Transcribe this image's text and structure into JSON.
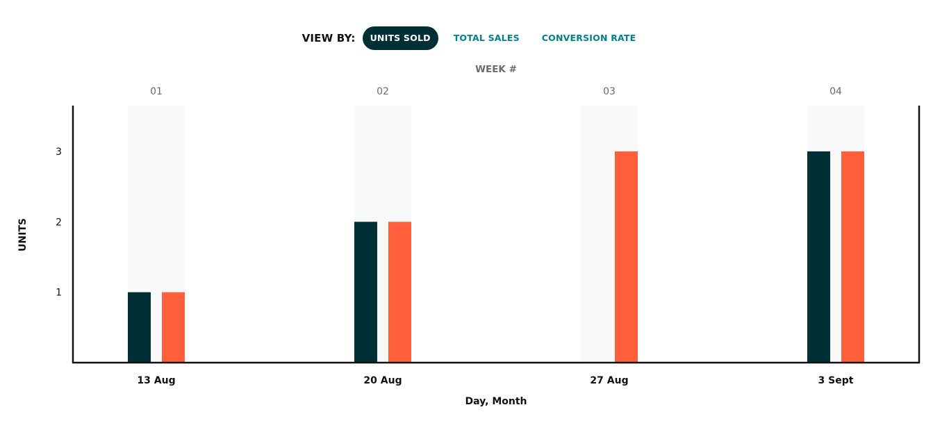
{
  "view_by": {
    "label": "VIEW BY:",
    "tabs": [
      {
        "label": "UNITS SOLD",
        "active": true
      },
      {
        "label": "TOTAL SALES",
        "active": false
      },
      {
        "label": "CONVERSION RATE",
        "active": false
      }
    ]
  },
  "colors": {
    "series_1": "#002f36",
    "series_2": "#ff5f3b",
    "band": "#f9f9f9",
    "axis": "#111111",
    "tab_active_bg": "#002f36",
    "tab_link": "#00808a"
  },
  "chart_data": {
    "type": "bar",
    "ylabel": "UNITS",
    "xlabel": "Day, Month",
    "top_axis_label": "WEEK #",
    "categories": [
      "13 Aug",
      "20 Aug",
      "27 Aug",
      "3 Sept"
    ],
    "weeks": [
      "01",
      "02",
      "03",
      "04"
    ],
    "yticks": [
      1,
      2,
      3
    ],
    "ylim": [
      0,
      3.65
    ],
    "grid": false,
    "series": [
      {
        "values": [
          1,
          2,
          0,
          3
        ]
      },
      {
        "values": [
          1,
          2,
          3,
          3
        ]
      }
    ]
  }
}
